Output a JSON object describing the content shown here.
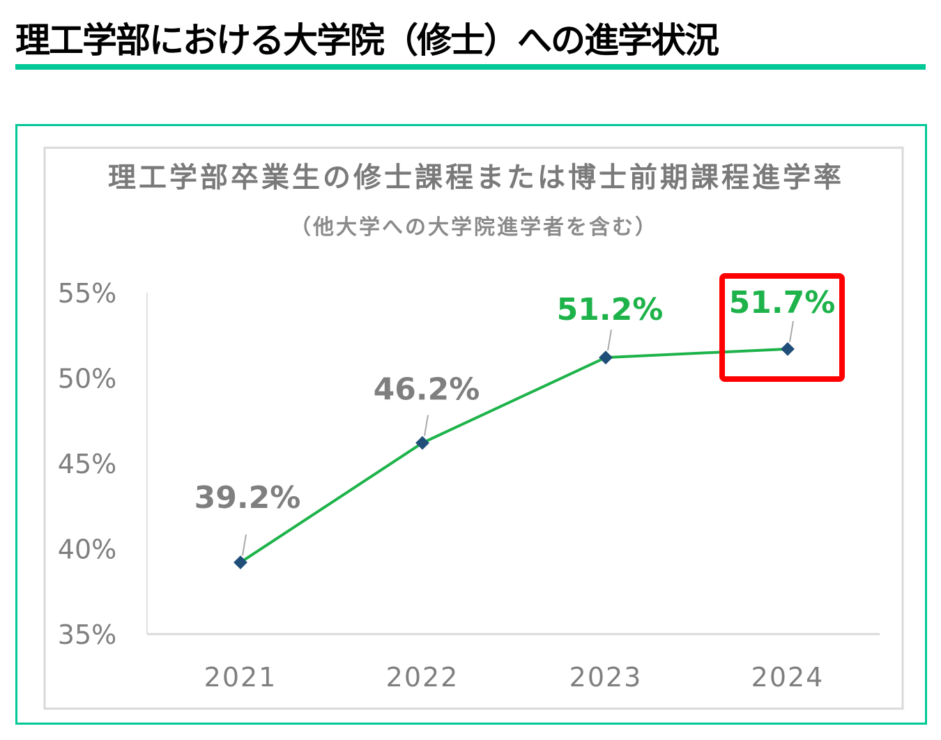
{
  "page": {
    "title": "理工学部における大学院（修士）への進学状況"
  },
  "colors": {
    "accent": "#00c896",
    "line": "#1db34a",
    "marker": "#1f4e79",
    "highlight": "#ff0000",
    "label_gray": "#7f7f7f",
    "label_green": "#1db34a"
  },
  "chart_data": {
    "type": "line",
    "title": "理工学部卒業生の修士課程または博士前期課程進学率",
    "subtitle": "（他大学への大学院進学者を含む）",
    "categories": [
      "2021",
      "2022",
      "2023",
      "2024"
    ],
    "values": [
      39.2,
      46.2,
      51.2,
      51.7
    ],
    "data_labels": [
      "39.2%",
      "46.2%",
      "51.2%",
      "51.7%"
    ],
    "label_colors": [
      "gray",
      "gray",
      "green",
      "green"
    ],
    "ylim": [
      35,
      55
    ],
    "yticks": [
      "35%",
      "40%",
      "45%",
      "50%",
      "55%"
    ],
    "ytick_values": [
      35,
      40,
      45,
      50,
      55
    ],
    "grid": false,
    "highlighted_category": "2024"
  }
}
